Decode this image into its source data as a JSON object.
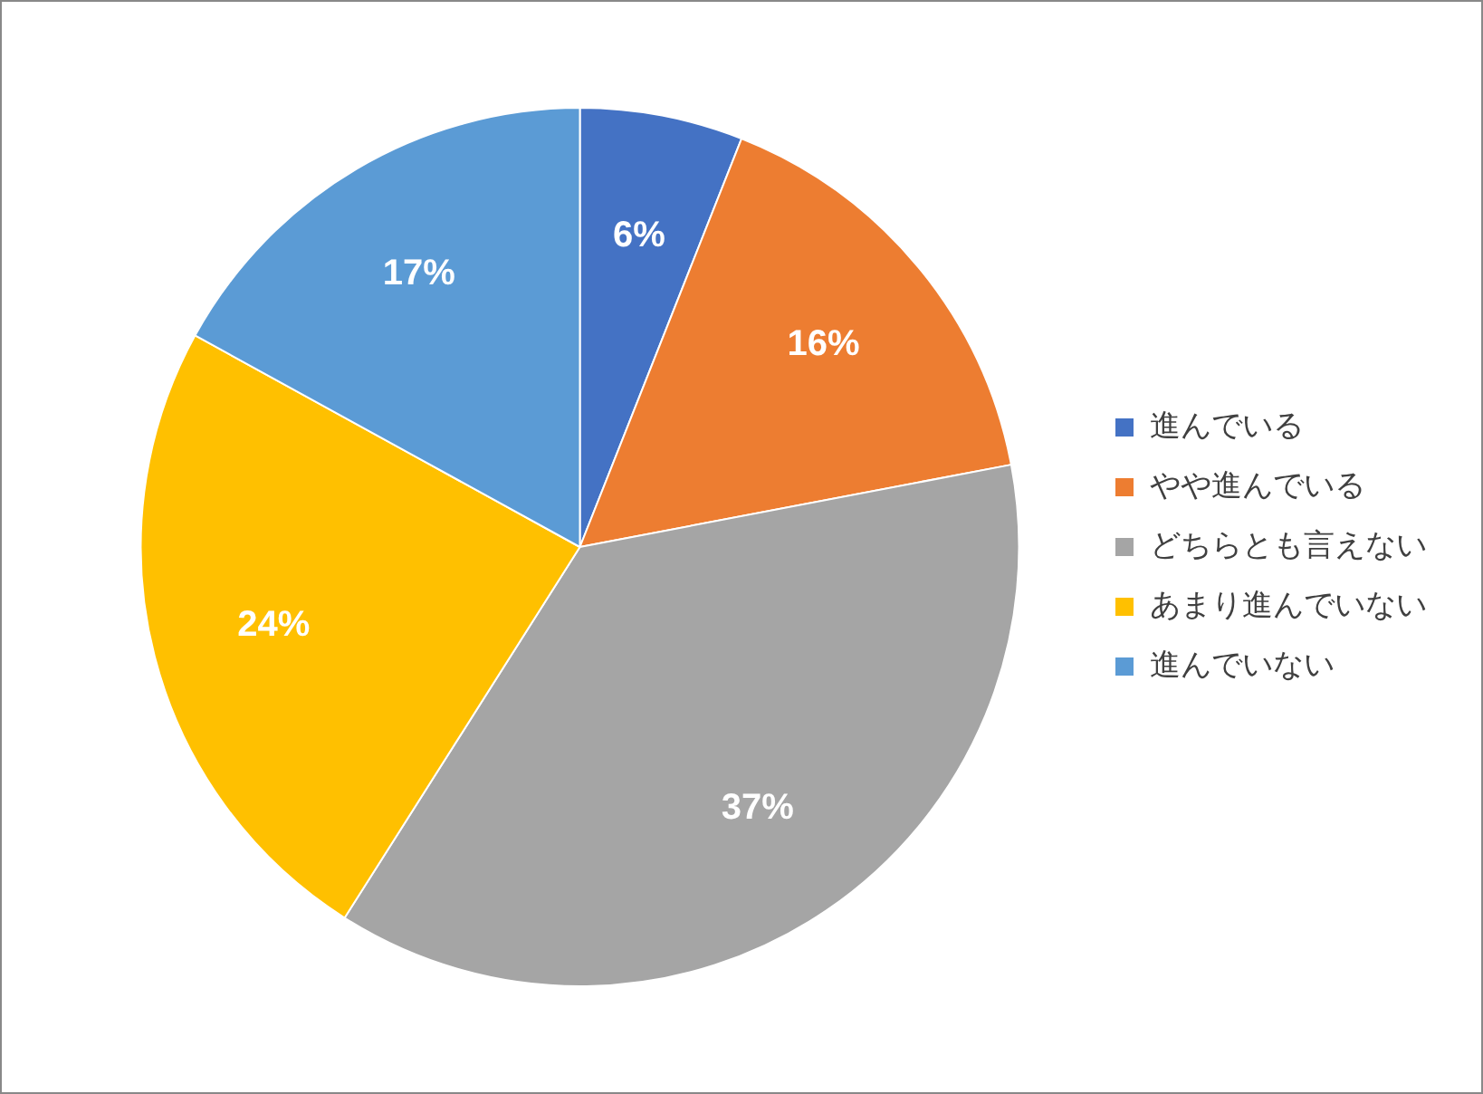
{
  "chart_data": {
    "type": "pie",
    "categories": [
      "進んでいる",
      "やや進んでいる",
      "どちらとも言えない",
      "あまり進んでいない",
      "進んでいない"
    ],
    "values": [
      6,
      16,
      37,
      24,
      17
    ],
    "colors": [
      "#4472c4",
      "#ed7d31",
      "#a5a5a5",
      "#ffc000",
      "#5b9bd5"
    ],
    "value_labels": [
      "6%",
      "16%",
      "37%",
      "24%",
      "17%"
    ],
    "legend": "right"
  }
}
